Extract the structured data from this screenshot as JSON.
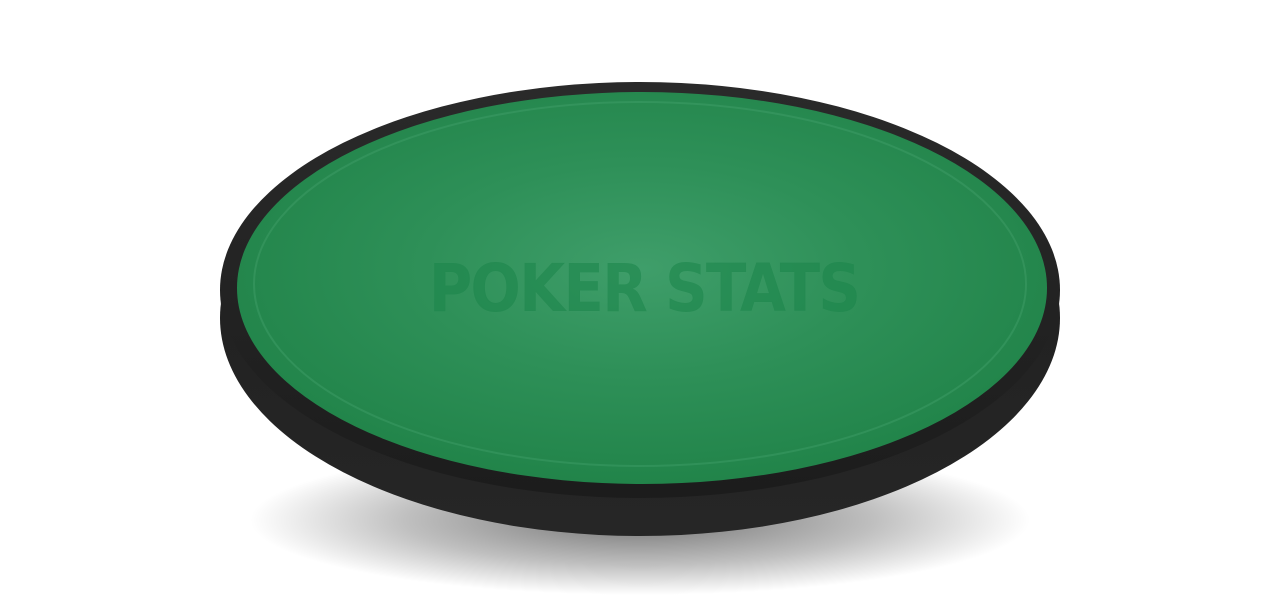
{
  "table": {
    "logo_text": "POKER STATS"
  },
  "colors": {
    "felt": "#238a4e",
    "felt_center": "#3c9a67",
    "felt_edge": "#1e7f46",
    "rail": "#222222",
    "rail_side": "#1a1a1a",
    "background": "#ffffff"
  }
}
